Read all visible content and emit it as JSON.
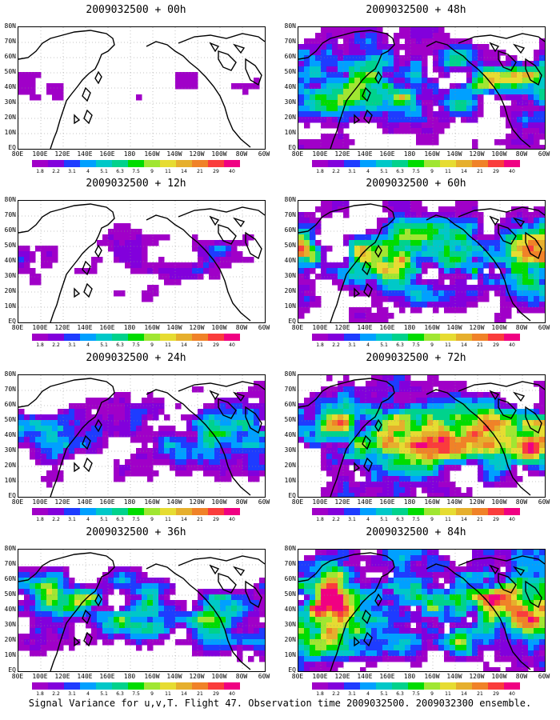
{
  "panels": [
    {
      "title": "2009032500 + 00h",
      "level": 0.12
    },
    {
      "title": "2009032500 + 12h",
      "level": 0.3
    },
    {
      "title": "2009032500 + 24h",
      "level": 0.45
    },
    {
      "title": "2009032500 + 36h",
      "level": 0.6
    },
    {
      "title": "2009032500 + 48h",
      "level": 0.66
    },
    {
      "title": "2009032500 + 60h",
      "level": 0.72
    },
    {
      "title": "2009032500 + 72h",
      "level": 0.82
    },
    {
      "title": "2009032500 + 84h",
      "level": 0.92
    }
  ],
  "lat_labels": [
    "80N",
    "70N",
    "60N",
    "50N",
    "40N",
    "30N",
    "20N",
    "10N",
    "EQ"
  ],
  "lon_labels": [
    "80E",
    "100E",
    "120E",
    "140E",
    "160E",
    "180",
    "160W",
    "140W",
    "120W",
    "100W",
    "80W",
    "60W"
  ],
  "colorbar": {
    "colors": [
      "#a000c8",
      "#8200dc",
      "#1e3cff",
      "#00a0ff",
      "#00c8c8",
      "#00d28c",
      "#00dc00",
      "#a0e632",
      "#e6dc32",
      "#e6af2d",
      "#f08228",
      "#fa3c3c",
      "#f00082"
    ],
    "labels": [
      "1.8",
      "2.2",
      "3.1",
      "4",
      "5.1",
      "6.3",
      "7.5",
      "9",
      "11",
      "14",
      "21",
      "29",
      "40"
    ]
  },
  "caption": "Signal Variance for u,v,T. Flight 47. Observation time 2009032500. 2009032300 ensemble."
}
